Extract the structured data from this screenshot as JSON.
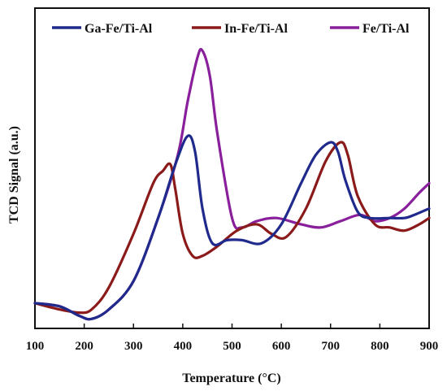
{
  "chart_data": {
    "type": "line",
    "title": "",
    "xlabel": "Temperature (°C)",
    "ylabel": "TCD Signal (a.u.)",
    "xlim": [
      100,
      900
    ],
    "x_ticks": [
      "100",
      "200",
      "300",
      "400",
      "500",
      "600",
      "700",
      "800",
      "900"
    ],
    "y_ticks_shown": false,
    "legend_position": "top",
    "series": [
      {
        "name": "Ga-Fe/Ti-Al",
        "color": "#1f2a8c",
        "x": [
          100,
          150,
          190,
          215,
          250,
          300,
          350,
          385,
          410,
          425,
          440,
          460,
          490,
          520,
          560,
          600,
          640,
          670,
          700,
          715,
          730,
          755,
          780,
          820,
          850,
          870,
          900
        ],
        "y": [
          0.08,
          0.07,
          0.04,
          0.03,
          0.06,
          0.15,
          0.35,
          0.52,
          0.61,
          0.56,
          0.38,
          0.27,
          0.28,
          0.28,
          0.27,
          0.33,
          0.46,
          0.55,
          0.59,
          0.56,
          0.47,
          0.37,
          0.35,
          0.35,
          0.35,
          0.36,
          0.38
        ]
      },
      {
        "name": "In-Fe/Ti-Al",
        "color": "#8b1a1a",
        "x": [
          100,
          150,
          190,
          215,
          250,
          300,
          340,
          360,
          375,
          385,
          400,
          420,
          440,
          470,
          510,
          550,
          580,
          610,
          650,
          690,
          720,
          735,
          755,
          790,
          820,
          850,
          880,
          900
        ],
        "y": [
          0.08,
          0.06,
          0.05,
          0.06,
          0.13,
          0.3,
          0.46,
          0.5,
          0.52,
          0.44,
          0.3,
          0.23,
          0.23,
          0.26,
          0.31,
          0.33,
          0.3,
          0.29,
          0.38,
          0.53,
          0.59,
          0.55,
          0.42,
          0.33,
          0.32,
          0.31,
          0.33,
          0.35
        ]
      },
      {
        "name": "Fe/Ti-Al",
        "color": "#8a1f9c",
        "x": [
          100,
          150,
          190,
          215,
          250,
          300,
          350,
          390,
          410,
          430,
          440,
          455,
          470,
          500,
          520,
          550,
          590,
          640,
          680,
          720,
          760,
          790,
          820,
          850,
          880,
          900
        ],
        "y": [
          0.08,
          0.07,
          0.04,
          0.03,
          0.06,
          0.15,
          0.35,
          0.55,
          0.72,
          0.86,
          0.88,
          0.8,
          0.62,
          0.35,
          0.32,
          0.34,
          0.35,
          0.33,
          0.32,
          0.34,
          0.36,
          0.34,
          0.35,
          0.38,
          0.43,
          0.46
        ]
      }
    ]
  }
}
